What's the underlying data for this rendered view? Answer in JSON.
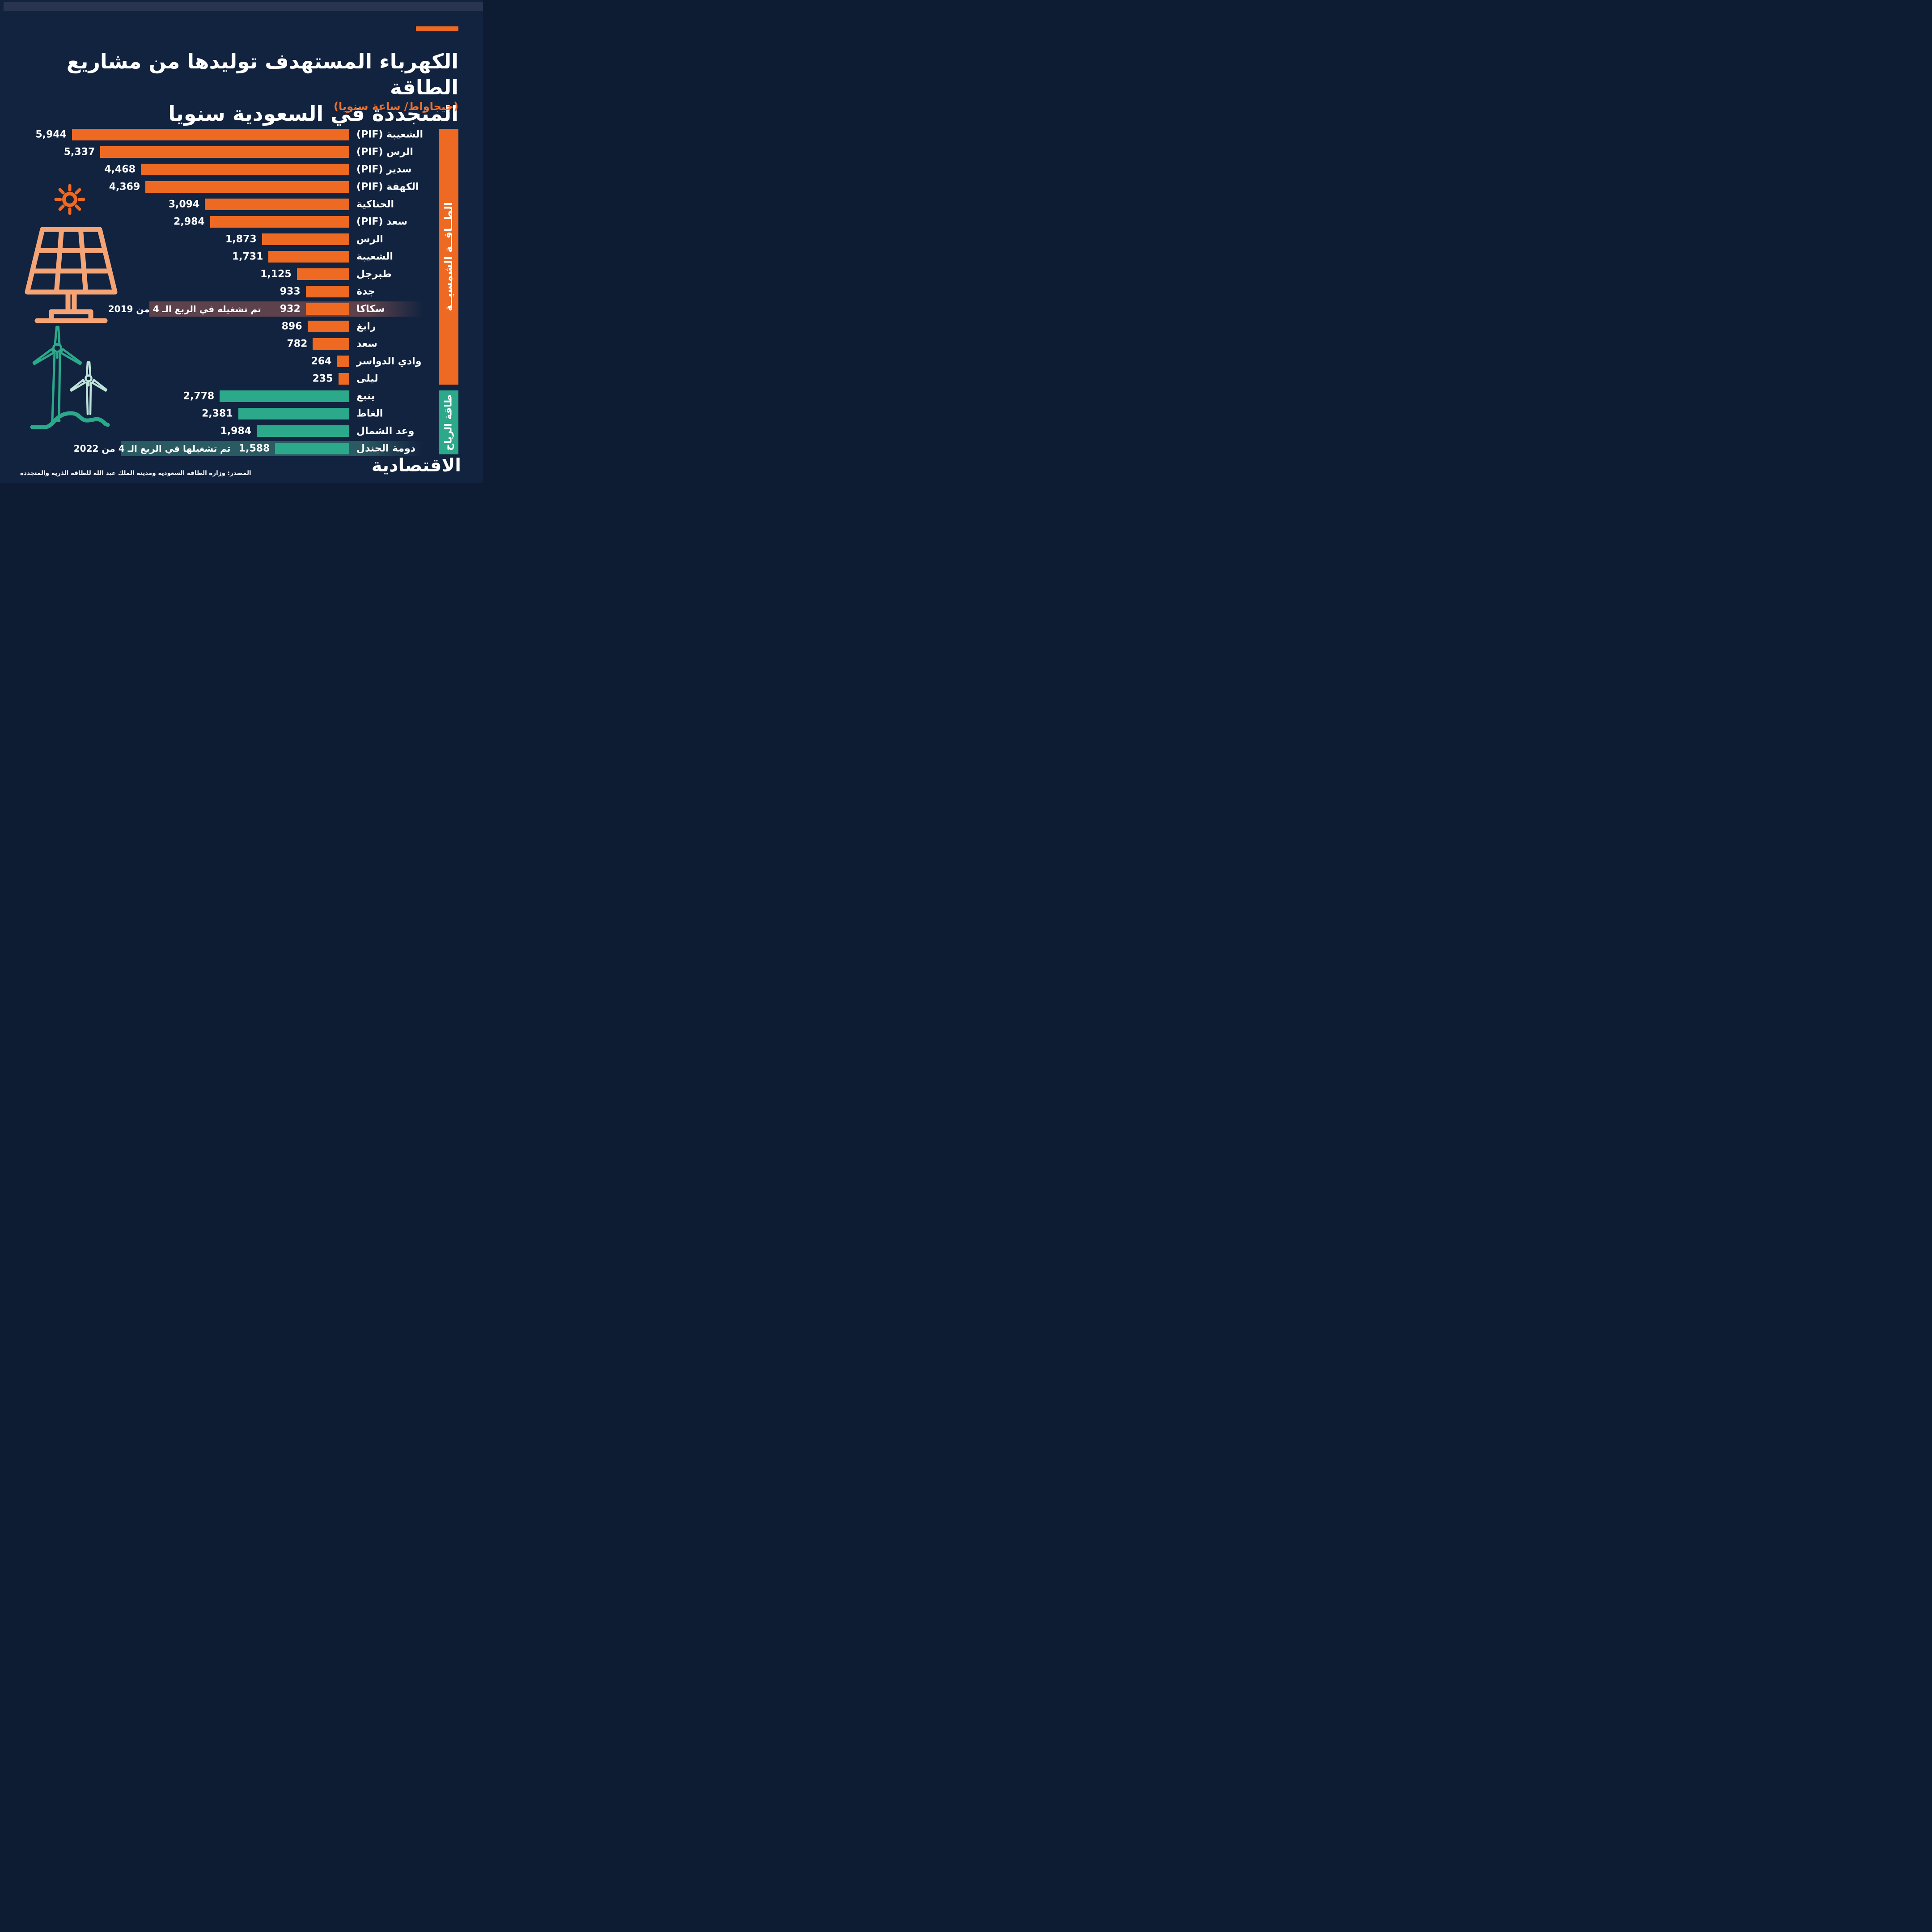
{
  "page": {
    "title_line1": "الكهرباء المستهدف توليدها من مشاريع الطاقة",
    "title_line2": "المتجددة في السعودية سنويا",
    "subtitle": "(جيجاواط/ ساعة سنويا)",
    "source": "المصدر: وزارة الطاقة السعودية ومدينة الملك عبد الله للطاقة الذرية والمتجددة",
    "logo": "الاقتصادية"
  },
  "colors": {
    "background": "#12233f",
    "header_band": "#293550",
    "solar": "#ee6a23",
    "wind": "#2ca88a",
    "panel_peach": "#f5a476",
    "turbine_mint": "#bfe4da",
    "annotation_2019_band": "#5d424b",
    "annotation_2022_band": "#2a5a62",
    "text": "#ffffff"
  },
  "chart_data": {
    "type": "bar",
    "orientation": "horizontal-rtl",
    "title": "الكهرباء المستهدف توليدها من مشاريع الطاقة المتجددة في السعودية سنويا",
    "unit": "جيجاواط/ ساعة سنويا",
    "max_value": 5944,
    "legend_position": "right-vertical-bands",
    "groups": [
      {
        "name": "الطاقة الشمسية",
        "display": "الطــاقــة الشمسيــة",
        "color": "#ee6a23"
      },
      {
        "name": "طاقة الرياح",
        "display": "طاقة الرياح",
        "color": "#2ca88a"
      }
    ],
    "bars": [
      {
        "label": "الشعيبة (PIF)",
        "value": 5944,
        "value_label": "5,944",
        "group": 0
      },
      {
        "label": "الرس (PIF)",
        "value": 5337,
        "value_label": "5,337",
        "group": 0
      },
      {
        "label": "سدير (PIF)",
        "value": 4468,
        "value_label": "4,468",
        "group": 0
      },
      {
        "label": "الكهفة (PIF)",
        "value": 4369,
        "value_label": "4,369",
        "group": 0
      },
      {
        "label": "الحناكية",
        "value": 3094,
        "value_label": "3,094",
        "group": 0
      },
      {
        "label": "سعد (PIF)",
        "value": 2984,
        "value_label": "2,984",
        "group": 0
      },
      {
        "label": "الرس",
        "value": 1873,
        "value_label": "1,873",
        "group": 0
      },
      {
        "label": "الشعيبة",
        "value": 1731,
        "value_label": "1,731",
        "group": 0
      },
      {
        "label": "طبرجل",
        "value": 1125,
        "value_label": "1,125",
        "group": 0
      },
      {
        "label": "جدة",
        "value": 933,
        "value_label": "933",
        "group": 0
      },
      {
        "label": "سكاكا",
        "value": 932,
        "value_label": "932",
        "group": 0,
        "annotation": "تم تشغيله في الربع الـ 4 من  2019"
      },
      {
        "label": "رابغ",
        "value": 896,
        "value_label": "896",
        "group": 0
      },
      {
        "label": "سعد",
        "value": 782,
        "value_label": "782",
        "group": 0
      },
      {
        "label": "وادي الدواسر",
        "value": 264,
        "value_label": "264",
        "group": 0
      },
      {
        "label": "ليلى",
        "value": 235,
        "value_label": "235",
        "group": 0
      },
      {
        "label": "ينبع",
        "value": 2778,
        "value_label": "2,778",
        "group": 1
      },
      {
        "label": "الغاط",
        "value": 2381,
        "value_label": "2,381",
        "group": 1
      },
      {
        "label": "وعد الشمال",
        "value": 1984,
        "value_label": "1,984",
        "group": 1
      },
      {
        "label": "دومة الجندل",
        "value": 1588,
        "value_label": "1,588",
        "group": 1,
        "annotation": "تم تشغيلها في الربع الـ 4 من  2022"
      }
    ]
  }
}
